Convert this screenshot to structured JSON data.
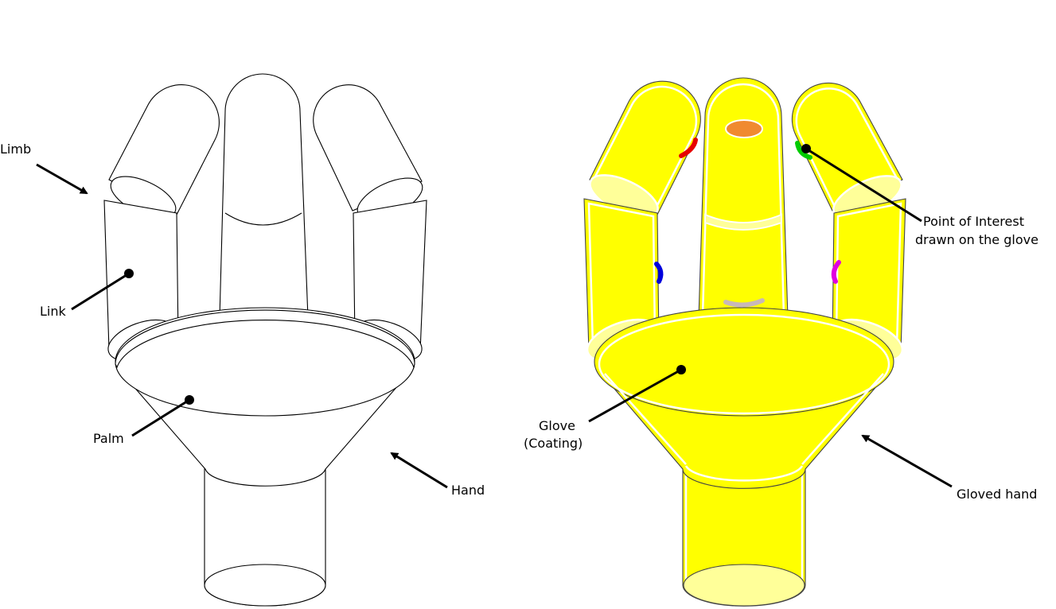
{
  "labels": {
    "limb": "Limb",
    "link": "Link",
    "palm": "Palm",
    "hand": "Hand",
    "glove_line1": "Glove",
    "glove_line2": "(Coating)",
    "poi_line1": "Point of Interest",
    "poi_line2": "drawn on the glove",
    "gloved_hand": "Gloved hand"
  },
  "colors": {
    "glove": "#ffff00",
    "glove_light": "#ffff99",
    "poi_orange": "#f08a30",
    "poi_red": "#e60000",
    "poi_green": "#00cc00",
    "poi_blue": "#0000dd",
    "poi_magenta": "#e000e0",
    "poi_grey": "#c8b8b8"
  }
}
